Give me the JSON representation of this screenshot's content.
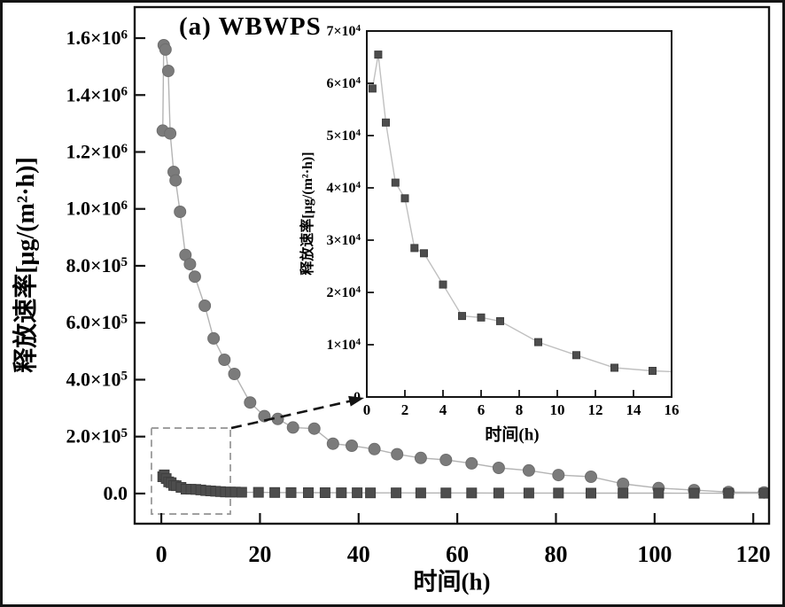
{
  "figure": {
    "panel_label": "(a) WBWPS",
    "background": "#ffffff",
    "border_color": "#141414"
  },
  "chart_data": [
    {
      "name": "main",
      "type": "line",
      "title": "(a) WBWPS",
      "xlabel": "时间(h)",
      "ylabel": "释放速率[μg/(m²·h)]",
      "xlim": [
        -5.4,
        123.2
      ],
      "ylim": [
        -106000,
        1709000
      ],
      "grid": false,
      "legend": null,
      "x_ticks": {
        "values": [
          0,
          20,
          40,
          60,
          80,
          100,
          120
        ],
        "labels": [
          "0",
          "20",
          "40",
          "60",
          "80",
          "100",
          "120"
        ]
      },
      "y_ticks": {
        "values": [
          0,
          200000,
          400000,
          600000,
          800000,
          1000000,
          1200000,
          1400000,
          1600000
        ],
        "labels": [
          "0.0",
          "2.0×10^5",
          "4.0×10^5",
          "6.0×10^5",
          "8.0×10^5",
          "1.0×10^6",
          "1.2×10^6",
          "1.4×10^6",
          "1.6×10^6"
        ]
      },
      "series": [
        {
          "name": "release-rate-circles",
          "marker": "circle",
          "marker_size": 13,
          "color": "#7b7b7b",
          "edge_color": "#6e6e6e",
          "line_color": "#b4b4b4",
          "points": [
            [
              0.3,
              1275000
            ],
            [
              0.5,
              1575000
            ],
            [
              0.85,
              1560000
            ],
            [
              1.4,
              1485000
            ],
            [
              1.8,
              1265000
            ],
            [
              2.5,
              1130000
            ],
            [
              2.9,
              1100000
            ],
            [
              3.8,
              990000
            ],
            [
              4.9,
              838000
            ],
            [
              5.8,
              806000
            ],
            [
              6.8,
              762000
            ],
            [
              8.8,
              660000
            ],
            [
              10.6,
              545000
            ],
            [
              12.8,
              470000
            ],
            [
              14.8,
              420000
            ],
            [
              18,
              320000
            ],
            [
              20.9,
              272000
            ],
            [
              23.6,
              262000
            ],
            [
              26.7,
              232000
            ],
            [
              31,
              228000
            ],
            [
              34.8,
              175000
            ],
            [
              38.6,
              168000
            ],
            [
              43.2,
              156000
            ],
            [
              47.8,
              138000
            ],
            [
              52.6,
              125000
            ],
            [
              57.7,
              118000
            ],
            [
              62.9,
              106000
            ],
            [
              68.4,
              90000
            ],
            [
              74.5,
              81000
            ],
            [
              80.5,
              65000
            ],
            [
              87.1,
              59000
            ],
            [
              93.6,
              34000
            ],
            [
              100.8,
              19000
            ],
            [
              108,
              12000
            ],
            [
              115,
              5000
            ],
            [
              122.2,
              4000
            ]
          ]
        },
        {
          "name": "release-rate-squares",
          "marker": "square",
          "marker_size": 11,
          "color": "#4d4d4d",
          "edge_color": "#3f3f3f",
          "line_color": "#b4b4b4",
          "points": [
            [
              0.3,
              59000
            ],
            [
              0.6,
              65500
            ],
            [
              1,
              52500
            ],
            [
              1.5,
              41000
            ],
            [
              2,
              38000
            ],
            [
              2.5,
              28500
            ],
            [
              3,
              27500
            ],
            [
              4,
              21500
            ],
            [
              5,
              15500
            ],
            [
              6,
              15200
            ],
            [
              7,
              14500
            ],
            [
              8,
              12500
            ],
            [
              9,
              10500
            ],
            [
              10,
              9200
            ],
            [
              11,
              8000
            ],
            [
              12,
              6800
            ],
            [
              13,
              5600
            ],
            [
              14,
              5200
            ],
            [
              15,
              5000
            ],
            [
              16.3,
              4600
            ],
            [
              19.7,
              4100
            ],
            [
              23,
              3700
            ],
            [
              26.3,
              3400
            ],
            [
              29.8,
              3100
            ],
            [
              33.2,
              2900
            ],
            [
              36.5,
              2700
            ],
            [
              39.7,
              2500
            ],
            [
              42.4,
              2400
            ],
            [
              47.6,
              2200
            ],
            [
              52.6,
              2100
            ],
            [
              57.7,
              2000
            ],
            [
              62.9,
              1900
            ],
            [
              68.4,
              1800
            ],
            [
              74.5,
              1700
            ],
            [
              80.5,
              1600
            ],
            [
              87.1,
              1500
            ],
            [
              93.6,
              1400
            ],
            [
              100.8,
              1300
            ],
            [
              108,
              1200
            ],
            [
              115,
              1100
            ],
            [
              122.2,
              1000
            ]
          ]
        }
      ],
      "zoom_box": {
        "x_range": [
          -2,
          14
        ],
        "y_range": [
          -72000,
          230000
        ],
        "color": "#9a9a9a"
      },
      "connector": {
        "style": "dashed-arrow",
        "color": "#141414",
        "from": "zoom_box top-right corner",
        "to": "inset origin"
      }
    },
    {
      "name": "inset",
      "type": "line",
      "title": "",
      "xlabel": "时间(h)",
      "ylabel": "释放速率[μg/(m²·h)]",
      "xlim": [
        0,
        16
      ],
      "ylim": [
        0,
        70000
      ],
      "grid": false,
      "legend": null,
      "x_ticks": {
        "values": [
          0,
          2,
          4,
          6,
          8,
          10,
          12,
          14,
          16
        ],
        "labels": [
          "0",
          "2",
          "4",
          "6",
          "8",
          "10",
          "12",
          "14",
          "16"
        ]
      },
      "y_ticks": {
        "values": [
          0,
          10000,
          20000,
          30000,
          40000,
          50000,
          60000,
          70000
        ],
        "labels": [
          "0",
          "1×10^4",
          "2×10^4",
          "3×10^4",
          "4×10^4",
          "5×10^4",
          "6×10^4",
          "7×10^4"
        ]
      },
      "series": [
        {
          "name": "release-rate-squares-zoom",
          "marker": "square",
          "marker_size": 8,
          "color": "#4d4d4d",
          "edge_color": "#3f3f3f",
          "line_color": "#c0c0c0",
          "points": [
            [
              0.3,
              59000
            ],
            [
              0.6,
              65500
            ],
            [
              1,
              52500
            ],
            [
              1.5,
              41000
            ],
            [
              2,
              38000
            ],
            [
              2.5,
              28500
            ],
            [
              3,
              27500
            ],
            [
              4,
              21500
            ],
            [
              5,
              15500
            ],
            [
              6,
              15200
            ],
            [
              7,
              14500
            ],
            [
              9,
              10500
            ],
            [
              11,
              8000
            ],
            [
              13,
              5600
            ],
            [
              15,
              5000
            ],
            [
              17,
              4700
            ]
          ]
        }
      ]
    }
  ]
}
